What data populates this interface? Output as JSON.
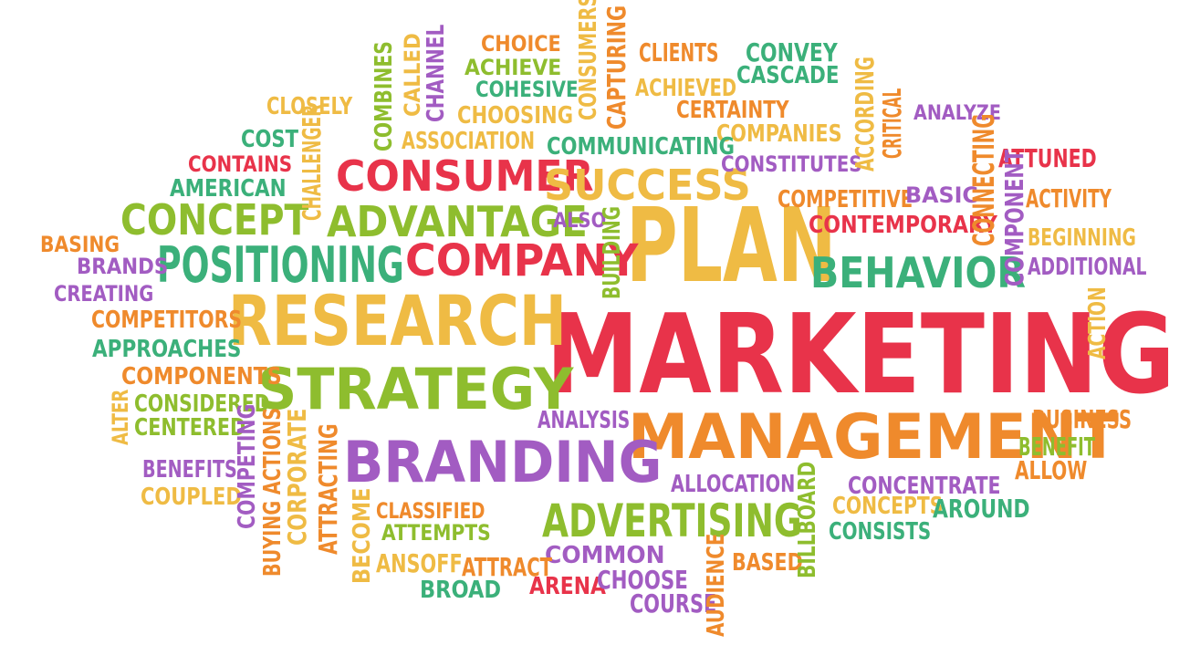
{
  "palette": {
    "red": "#e8334a",
    "orange": "#ef8a2c",
    "yellow": "#efbb44",
    "green": "#8ebd2e",
    "teal": "#3bb07a",
    "purple": "#a25cc2"
  },
  "words": [
    {
      "text": "MARKETING",
      "color": "red",
      "rotate": false
    },
    {
      "text": "PLAN",
      "color": "yellow",
      "rotate": false
    },
    {
      "text": "MANAGEMENT",
      "color": "orange",
      "rotate": false
    },
    {
      "text": "RESEARCH",
      "color": "yellow",
      "rotate": false
    },
    {
      "text": "STRATEGY",
      "color": "green",
      "rotate": false
    },
    {
      "text": "BRANDING",
      "color": "purple",
      "rotate": false
    },
    {
      "text": "CONSUMER",
      "color": "red",
      "rotate": false
    },
    {
      "text": "ADVANTAGE",
      "color": "green",
      "rotate": false
    },
    {
      "text": "CONCEPT",
      "color": "green",
      "rotate": false
    },
    {
      "text": "POSITIONING",
      "color": "teal",
      "rotate": false
    },
    {
      "text": "COMPANY",
      "color": "red",
      "rotate": false
    },
    {
      "text": "SUCCESS",
      "color": "yellow",
      "rotate": false
    },
    {
      "text": "BEHAVIOR",
      "color": "teal",
      "rotate": false
    },
    {
      "text": "ADVERTISING",
      "color": "green",
      "rotate": false
    },
    {
      "text": "CHOICE",
      "color": "orange",
      "rotate": false
    },
    {
      "text": "ACHIEVE",
      "color": "green",
      "rotate": false
    },
    {
      "text": "COHESIVE",
      "color": "teal",
      "rotate": false
    },
    {
      "text": "CHOOSING",
      "color": "yellow",
      "rotate": false
    },
    {
      "text": "ASSOCIATION",
      "color": "yellow",
      "rotate": false
    },
    {
      "text": "CLIENTS",
      "color": "orange",
      "rotate": false
    },
    {
      "text": "ACHIEVED",
      "color": "yellow",
      "rotate": false
    },
    {
      "text": "CONVEY",
      "color": "teal",
      "rotate": false
    },
    {
      "text": "CASCADE",
      "color": "teal",
      "rotate": false
    },
    {
      "text": "CERTAINTY",
      "color": "orange",
      "rotate": false
    },
    {
      "text": "COMPANIES",
      "color": "yellow",
      "rotate": false
    },
    {
      "text": "ANALYZE",
      "color": "purple",
      "rotate": false
    },
    {
      "text": "COMMUNICATING",
      "color": "teal",
      "rotate": false
    },
    {
      "text": "CONSTITUTES",
      "color": "purple",
      "rotate": false
    },
    {
      "text": "ATTUNED",
      "color": "red",
      "rotate": false
    },
    {
      "text": "COMPETITIVE",
      "color": "orange",
      "rotate": false
    },
    {
      "text": "BASIC",
      "color": "purple",
      "rotate": false
    },
    {
      "text": "ACTIVITY",
      "color": "orange",
      "rotate": false
    },
    {
      "text": "CONTEMPORARY",
      "color": "red",
      "rotate": false
    },
    {
      "text": "BEGINNING",
      "color": "yellow",
      "rotate": false
    },
    {
      "text": "ADDITIONAL",
      "color": "purple",
      "rotate": false
    },
    {
      "text": "ALSO",
      "color": "purple",
      "rotate": false
    },
    {
      "text": "CLOSELY",
      "color": "yellow",
      "rotate": false
    },
    {
      "text": "COST",
      "color": "teal",
      "rotate": false
    },
    {
      "text": "CONTAINS",
      "color": "red",
      "rotate": false
    },
    {
      "text": "AMERICAN",
      "color": "teal",
      "rotate": false
    },
    {
      "text": "BASING",
      "color": "orange",
      "rotate": false
    },
    {
      "text": "BRANDS",
      "color": "purple",
      "rotate": false
    },
    {
      "text": "CREATING",
      "color": "purple",
      "rotate": false
    },
    {
      "text": "COMPETITORS",
      "color": "orange",
      "rotate": false
    },
    {
      "text": "APPROACHES",
      "color": "teal",
      "rotate": false
    },
    {
      "text": "COMPONENTS",
      "color": "orange",
      "rotate": false
    },
    {
      "text": "CONSIDERED",
      "color": "green",
      "rotate": false
    },
    {
      "text": "CENTERED",
      "color": "green",
      "rotate": false
    },
    {
      "text": "BENEFITS",
      "color": "purple",
      "rotate": false
    },
    {
      "text": "COUPLED",
      "color": "yellow",
      "rotate": false
    },
    {
      "text": "ANALYSIS",
      "color": "purple",
      "rotate": false
    },
    {
      "text": "BUSINESS",
      "color": "orange",
      "rotate": false
    },
    {
      "text": "BENEFIT",
      "color": "green",
      "rotate": false
    },
    {
      "text": "ALLOW",
      "color": "orange",
      "rotate": false
    },
    {
      "text": "ALLOCATION",
      "color": "purple",
      "rotate": false
    },
    {
      "text": "CONCENTRATE",
      "color": "purple",
      "rotate": false
    },
    {
      "text": "CONCEPTS",
      "color": "yellow",
      "rotate": false
    },
    {
      "text": "AROUND",
      "color": "teal",
      "rotate": false
    },
    {
      "text": "CONSISTS",
      "color": "teal",
      "rotate": false
    },
    {
      "text": "CLASSIFIED",
      "color": "orange",
      "rotate": false
    },
    {
      "text": "ATTEMPTS",
      "color": "green",
      "rotate": false
    },
    {
      "text": "COMMON",
      "color": "purple",
      "rotate": false
    },
    {
      "text": "ANSOFF",
      "color": "yellow",
      "rotate": false
    },
    {
      "text": "ATTRACT",
      "color": "orange",
      "rotate": false
    },
    {
      "text": "BROAD",
      "color": "teal",
      "rotate": false
    },
    {
      "text": "ARENA",
      "color": "red",
      "rotate": false
    },
    {
      "text": "CHOOSE",
      "color": "purple",
      "rotate": false
    },
    {
      "text": "COURSE",
      "color": "purple",
      "rotate": false
    },
    {
      "text": "BASED",
      "color": "orange",
      "rotate": false
    },
    {
      "text": "COMBINES",
      "color": "green",
      "rotate": true
    },
    {
      "text": "CALLED",
      "color": "yellow",
      "rotate": true
    },
    {
      "text": "CHANNEL",
      "color": "purple",
      "rotate": true
    },
    {
      "text": "CONSUMERS",
      "color": "yellow",
      "rotate": true
    },
    {
      "text": "CAPTURING",
      "color": "orange",
      "rotate": true
    },
    {
      "text": "CHALLENGER",
      "color": "yellow",
      "rotate": true
    },
    {
      "text": "ACCORDING",
      "color": "yellow",
      "rotate": true
    },
    {
      "text": "CRITICAL",
      "color": "orange",
      "rotate": true
    },
    {
      "text": "CONNECTING",
      "color": "orange",
      "rotate": true
    },
    {
      "text": "COMPONENT",
      "color": "purple",
      "rotate": true
    },
    {
      "text": "BUILDING",
      "color": "green",
      "rotate": true
    },
    {
      "text": "ACTION",
      "color": "yellow",
      "rotate": true
    },
    {
      "text": "ALTER",
      "color": "yellow",
      "rotate": true
    },
    {
      "text": "BUYING ACTIONS",
      "color": "orange",
      "rotate": true
    },
    {
      "text": "COMPETING",
      "color": "purple",
      "rotate": true
    },
    {
      "text": "CORPORATE",
      "color": "yellow",
      "rotate": true
    },
    {
      "text": "ATTRACTING",
      "color": "orange",
      "rotate": true
    },
    {
      "text": "BECOME",
      "color": "yellow",
      "rotate": true
    },
    {
      "text": "AUDIENCE",
      "color": "orange",
      "rotate": true
    },
    {
      "text": "BILLBOARD",
      "color": "green",
      "rotate": true
    }
  ]
}
